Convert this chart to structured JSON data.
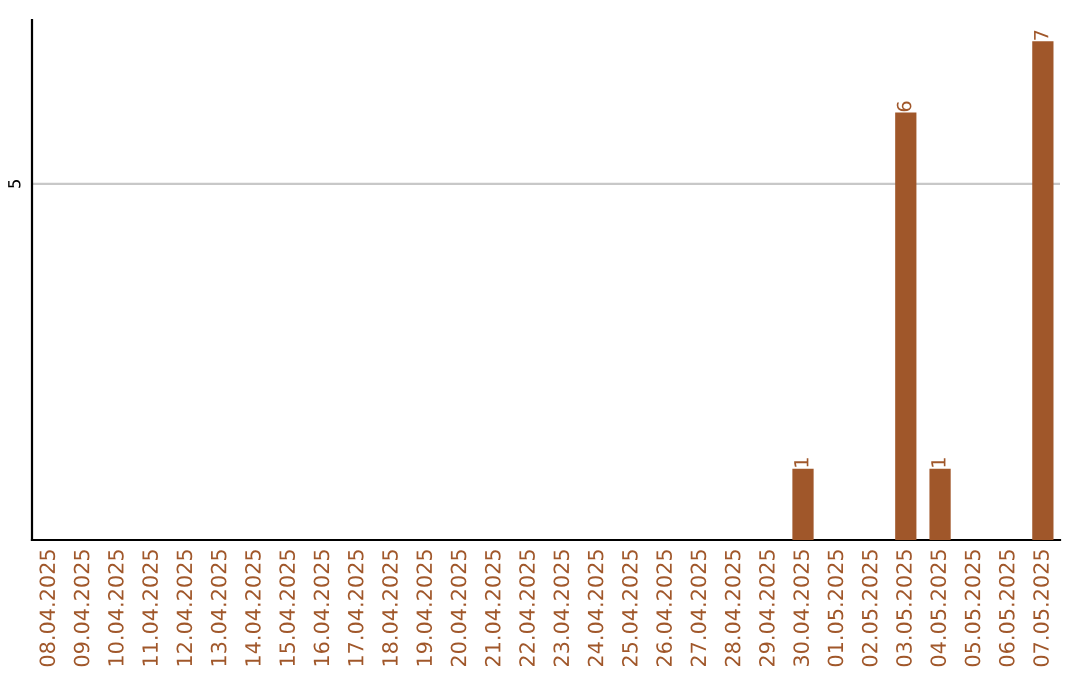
{
  "chart_data": {
    "type": "bar",
    "categories": [
      "08.04.2025",
      "09.04.2025",
      "10.04.2025",
      "11.04.2025",
      "12.04.2025",
      "13.04.2025",
      "14.04.2025",
      "15.04.2025",
      "16.04.2025",
      "17.04.2025",
      "18.04.2025",
      "19.04.2025",
      "20.04.2025",
      "21.04.2025",
      "22.04.2025",
      "23.04.2025",
      "24.04.2025",
      "25.04.2025",
      "26.04.2025",
      "27.04.2025",
      "28.04.2025",
      "29.04.2025",
      "30.04.2025",
      "01.05.2025",
      "02.05.2025",
      "03.05.2025",
      "04.05.2025",
      "05.05.2025",
      "06.05.2025",
      "07.05.2025"
    ],
    "values": [
      null,
      null,
      null,
      null,
      null,
      null,
      null,
      null,
      null,
      null,
      null,
      null,
      null,
      null,
      null,
      null,
      null,
      null,
      null,
      null,
      null,
      null,
      1,
      null,
      null,
      6,
      1,
      null,
      null,
      7
    ],
    "data_labels": true,
    "color": "#a0572a",
    "ylim": [
      0,
      7.3
    ],
    "ref_lines": [
      {
        "axis": "y",
        "value": 5,
        "label": "5",
        "color": "#c8c8c8"
      }
    ]
  }
}
